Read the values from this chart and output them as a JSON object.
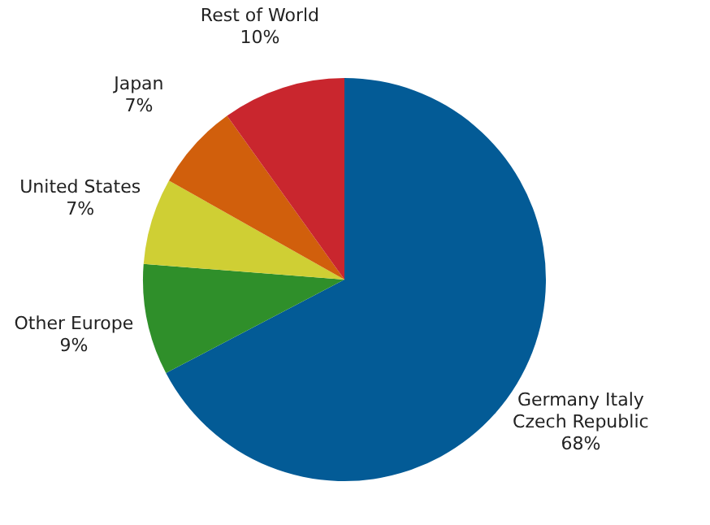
{
  "chart_data": {
    "type": "pie",
    "categories": [
      "Germany Italy Czech Republic",
      "Other Europe",
      "United States",
      "Japan",
      "Rest of World"
    ],
    "values": [
      68,
      9,
      7,
      7,
      10
    ],
    "value_labels": [
      "68%",
      "9%",
      "7%",
      "7%",
      "10%"
    ],
    "colors": [
      "#035b96",
      "#2f8f2a",
      "#cfcf34",
      "#d15f0c",
      "#c9262e"
    ]
  }
}
